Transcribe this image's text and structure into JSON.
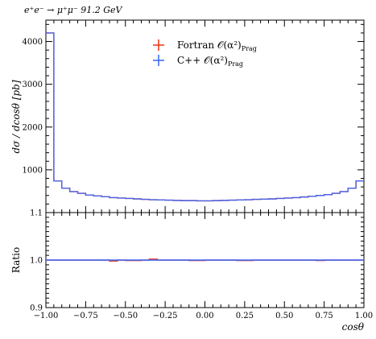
{
  "chart_data": [
    {
      "type": "line",
      "panel": "main",
      "title": "e⁺e⁻ → μ⁺μ⁻ 91.2 GeV",
      "ylabel": "dσ / dcosθ [pb]",
      "xlabel": "",
      "xlim": [
        -1.0,
        1.0
      ],
      "ylim": [
        0,
        4500
      ],
      "yticks": [
        1000,
        2000,
        3000,
        4000
      ],
      "ytick_labels": [
        "1000",
        "2000",
        "3000",
        "4000"
      ],
      "xticks": [
        -1.0,
        -0.75,
        -0.5,
        -0.25,
        0.0,
        0.25,
        0.5,
        0.75,
        1.0
      ],
      "bin_edges": [
        -1.0,
        -0.95,
        -0.9,
        -0.85,
        -0.8,
        -0.75,
        -0.7,
        -0.65,
        -0.6,
        -0.55,
        -0.5,
        -0.45,
        -0.4,
        -0.35,
        -0.3,
        -0.25,
        -0.2,
        -0.15,
        -0.1,
        -0.05,
        0.0,
        0.05,
        0.1,
        0.15,
        0.2,
        0.25,
        0.3,
        0.35,
        0.4,
        0.45,
        0.5,
        0.55,
        0.6,
        0.65,
        0.7,
        0.75,
        0.8,
        0.85,
        0.9,
        0.95,
        1.0
      ],
      "series": [
        {
          "name": "Fortran 𝒪(α²)",
          "name_sub": "Prag",
          "color": "#ee3311",
          "values": [
            4200,
            740,
            570,
            490,
            450,
            410,
            390,
            370,
            350,
            340,
            330,
            320,
            310,
            300,
            295,
            290,
            285,
            280,
            280,
            275,
            275,
            280,
            285,
            290,
            295,
            300,
            310,
            315,
            320,
            330,
            340,
            350,
            365,
            380,
            400,
            420,
            450,
            490,
            570,
            740,
            4200
          ]
        },
        {
          "name": "C++ 𝒪(α²)",
          "name_sub": "Prag",
          "color": "#3366ff",
          "values": [
            4200,
            740,
            570,
            490,
            450,
            410,
            390,
            370,
            350,
            340,
            330,
            320,
            310,
            300,
            295,
            290,
            285,
            280,
            280,
            275,
            275,
            280,
            285,
            290,
            295,
            300,
            310,
            315,
            320,
            330,
            340,
            350,
            365,
            380,
            400,
            420,
            450,
            490,
            570,
            740,
            4200
          ]
        }
      ],
      "legend_position": "top-center"
    },
    {
      "type": "line",
      "panel": "ratio",
      "ylabel": "Ratio",
      "xlabel": "cosθ",
      "xlim": [
        -1.0,
        1.0
      ],
      "ylim": [
        0.9,
        1.1
      ],
      "yticks": [
        0.9,
        1.0,
        1.1
      ],
      "ytick_labels": [
        "0.9",
        "1.0",
        "1.1"
      ],
      "xticks": [
        -1.0,
        -0.75,
        -0.5,
        -0.25,
        0.0,
        0.25,
        0.5,
        0.75,
        1.0
      ],
      "xtick_labels": [
        "−1.00",
        "−0.75",
        "−0.50",
        "−0.25",
        "0.00",
        "0.25",
        "0.50",
        "0.75",
        "1.00"
      ],
      "series": [
        {
          "name": "Fortran 𝒪(α²)",
          "color": "#ee3311",
          "values": [
            1.0,
            1.0,
            1.0,
            1.0,
            1.0,
            1.0,
            1.0,
            1.0,
            0.998,
            1.0,
            0.999,
            0.999,
            1.0,
            1.002,
            1.0,
            1.0,
            1.0,
            1.0,
            0.999,
            0.999,
            1.0,
            1.0,
            1.0,
            1.0,
            0.999,
            0.999,
            1.0,
            1.0,
            1.0,
            1.0,
            1.0,
            1.0,
            1.0,
            1.0,
            0.999,
            1.0,
            1.0,
            1.0,
            1.0,
            1.0
          ]
        },
        {
          "name": "C++ 𝒪(α²)",
          "color": "#3366ff",
          "values": [
            1.0,
            1.0,
            1.0,
            1.0,
            1.0,
            1.0,
            1.0,
            1.0,
            1.0,
            1.0,
            1.0,
            1.0,
            1.0,
            1.0,
            1.0,
            1.0,
            1.0,
            1.0,
            1.0,
            1.0,
            1.0,
            1.0,
            1.0,
            1.0,
            1.0,
            1.0,
            1.0,
            1.0,
            1.0,
            1.0,
            1.0,
            1.0,
            1.0,
            1.0,
            1.0,
            1.0,
            1.0,
            1.0,
            1.0,
            1.0
          ]
        }
      ]
    }
  ]
}
